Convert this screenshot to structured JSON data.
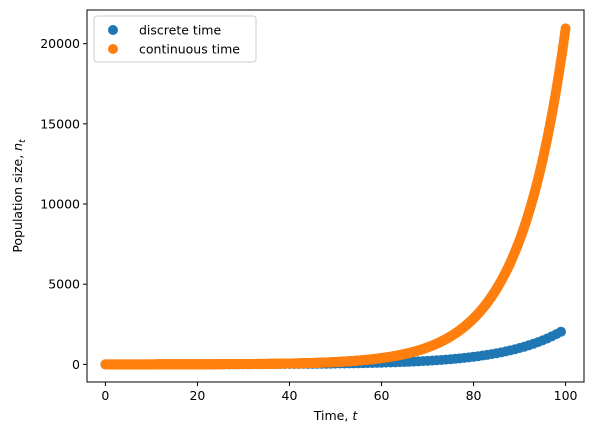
{
  "chart_data": {
    "type": "scatter",
    "title": "",
    "xlabel": "Time,",
    "xlabel_var": "t",
    "ylabel": "Population size,",
    "ylabel_var": "n",
    "ylabel_sub": "t",
    "xlim": [
      -4,
      104
    ],
    "ylim": [
      -1100,
      22100
    ],
    "xticks": [
      0,
      20,
      40,
      60,
      80,
      100
    ],
    "yticks": [
      0,
      5000,
      10000,
      15000,
      20000
    ],
    "grid": false,
    "legend": "upper-left",
    "series": [
      {
        "name": "discrete time",
        "color": "#1f77b4",
        "model": "discrete",
        "n0": 1,
        "r": 0.08,
        "x_start": 0,
        "x_end": 99,
        "x_step": 1
      },
      {
        "name": "continuous time",
        "color": "#ff7f0e",
        "model": "continuous",
        "n0": 1,
        "r": 0.0995,
        "x_start": 0,
        "x_end": 100,
        "x_step": 0.1
      }
    ]
  }
}
